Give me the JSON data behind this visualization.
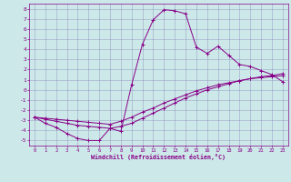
{
  "xlabel": "Windchill (Refroidissement éolien,°C)",
  "bg_color": "#cce8e8",
  "line_color": "#880088",
  "grid_color": "#8888bb",
  "xlim": [
    -0.5,
    23.5
  ],
  "ylim": [
    -5.5,
    8.5
  ],
  "xticks": [
    0,
    1,
    2,
    3,
    4,
    5,
    6,
    7,
    8,
    9,
    10,
    11,
    12,
    13,
    14,
    15,
    16,
    17,
    18,
    19,
    20,
    21,
    22,
    23
  ],
  "yticks": [
    -5,
    -4,
    -3,
    -2,
    -1,
    0,
    1,
    2,
    3,
    4,
    5,
    6,
    7,
    8
  ],
  "series1_x": [
    0,
    1,
    2,
    3,
    4,
    5,
    6,
    7,
    8,
    9,
    10,
    11,
    12,
    13,
    14,
    15,
    16,
    17,
    18,
    19,
    20,
    21,
    22,
    23
  ],
  "series1_y": [
    -2.7,
    -3.3,
    -3.7,
    -4.3,
    -4.8,
    -5.0,
    -5.0,
    -3.8,
    -4.1,
    0.5,
    4.5,
    6.9,
    7.9,
    7.8,
    7.5,
    4.2,
    3.6,
    4.3,
    3.4,
    2.5,
    2.3,
    1.9,
    1.5,
    0.8
  ],
  "series2_x": [
    0,
    1,
    2,
    3,
    4,
    5,
    6,
    7,
    8,
    9,
    10,
    11,
    12,
    13,
    14,
    15,
    16,
    17,
    18,
    19,
    20,
    21,
    22,
    23
  ],
  "series2_y": [
    -2.7,
    -2.9,
    -3.1,
    -3.3,
    -3.5,
    -3.6,
    -3.7,
    -3.8,
    -3.6,
    -3.3,
    -2.8,
    -2.3,
    -1.8,
    -1.3,
    -0.8,
    -0.4,
    0.0,
    0.3,
    0.6,
    0.9,
    1.1,
    1.3,
    1.4,
    1.6
  ],
  "series3_x": [
    0,
    1,
    2,
    3,
    4,
    5,
    6,
    7,
    8,
    9,
    10,
    11,
    12,
    13,
    14,
    15,
    16,
    17,
    18,
    19,
    20,
    21,
    22,
    23
  ],
  "series3_y": [
    -2.7,
    -2.8,
    -2.9,
    -3.0,
    -3.1,
    -3.2,
    -3.3,
    -3.4,
    -3.1,
    -2.7,
    -2.2,
    -1.8,
    -1.3,
    -0.9,
    -0.5,
    -0.1,
    0.2,
    0.5,
    0.7,
    0.9,
    1.1,
    1.2,
    1.3,
    1.4
  ]
}
